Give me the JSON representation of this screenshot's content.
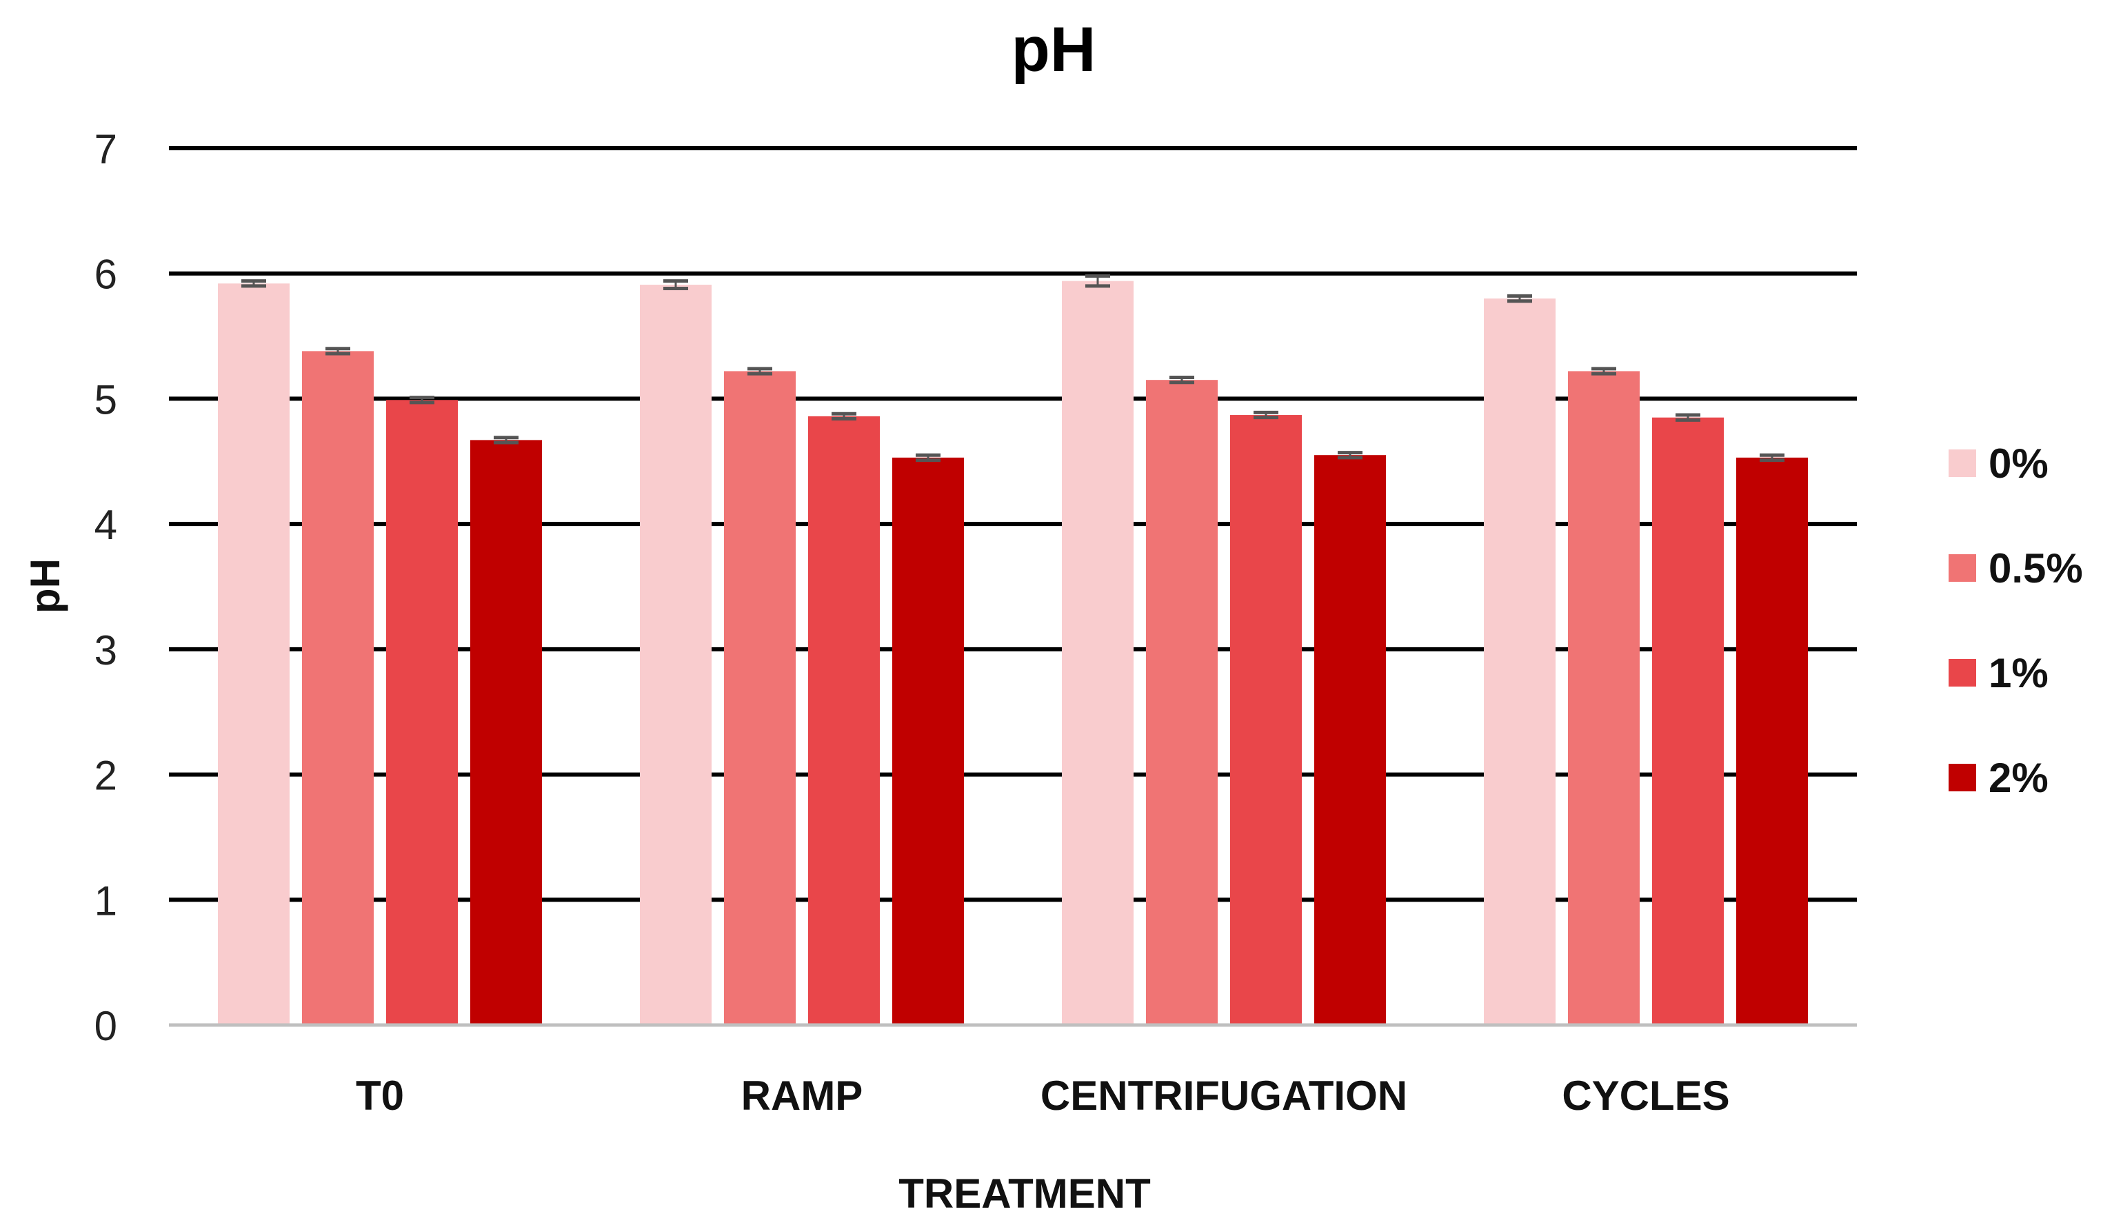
{
  "chart_data": {
    "type": "bar",
    "title": "pH",
    "xlabel": "TREATMENT",
    "ylabel": "pH",
    "ylim": [
      0,
      7
    ],
    "yticks": [
      0,
      1,
      2,
      3,
      4,
      5,
      6,
      7
    ],
    "grid": true,
    "legend_position": "right",
    "categories": [
      "T0",
      "RAMP",
      "CENTRIFUGATION",
      "CYCLES"
    ],
    "series": [
      {
        "name": "0%",
        "color": "#F9CCCE",
        "values": [
          5.92,
          5.91,
          5.94,
          5.8
        ],
        "errors": [
          0.02,
          0.03,
          0.04,
          0.02
        ]
      },
      {
        "name": "0.5%",
        "color": "#F07474",
        "values": [
          5.38,
          5.22,
          5.15,
          5.22
        ],
        "errors": [
          0.02,
          0.02,
          0.02,
          0.02
        ]
      },
      {
        "name": "1%",
        "color": "#E9464A",
        "values": [
          4.99,
          4.86,
          4.87,
          4.85
        ],
        "errors": [
          0.02,
          0.02,
          0.02,
          0.02
        ]
      },
      {
        "name": "2%",
        "color": "#C00000",
        "values": [
          4.67,
          4.53,
          4.55,
          4.53
        ],
        "errors": [
          0.02,
          0.02,
          0.02,
          0.02
        ]
      }
    ],
    "error_bar_color": "#555555"
  }
}
